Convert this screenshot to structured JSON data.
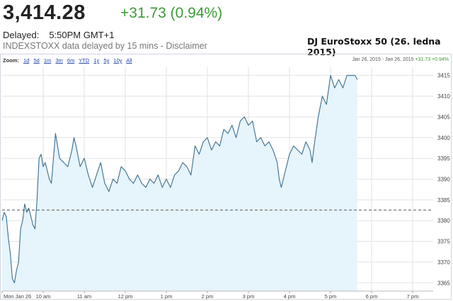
{
  "quote": {
    "price": "3,414.28",
    "change": "+31.73 (0.94%)",
    "delayed_label": "Delayed:",
    "delayed_time": "5:50PM GMT+1",
    "source_note": "INDEXSTOXX data delayed by 15 mins - Disclaimer"
  },
  "chart_title": "DJ EuroStoxx 50 (26. ledna 2015)",
  "zoom": {
    "label": "Zoom:",
    "options": [
      "1d",
      "5d",
      "1m",
      "3m",
      "6m",
      "YTD",
      "1y",
      "5y",
      "10y",
      "All"
    ]
  },
  "range_info": {
    "dates": "Jan 26, 2015 - Jan 26, 2015",
    "change": "+31.73 +0.94%"
  },
  "colors": {
    "line": "#3a6e8f",
    "fill": "#e6f4fb",
    "grid": "#e2e2e2",
    "reference": "#555555",
    "positive": "#3a9a35"
  },
  "chart_data": {
    "type": "area",
    "x_tick_labels": [
      "Mon Jan 26",
      "10 am",
      "11 am",
      "12 pm",
      "1 pm",
      "2 pm",
      "3 pm",
      "4 pm",
      "5 pm",
      "6 pm",
      "7 pm"
    ],
    "y_ticks": [
      3365,
      3370,
      3375,
      3380,
      3385,
      3390,
      3395,
      3400,
      3405,
      3410,
      3415
    ],
    "ylim": [
      3363,
      3417
    ],
    "xlim_hours": [
      9,
      19.5
    ],
    "reference_line": 3382.55,
    "grid": true,
    "series": [
      {
        "x": [
          9.0,
          9.05,
          9.1,
          9.15,
          9.2,
          9.25,
          9.3,
          9.35,
          9.4,
          9.45,
          9.5,
          9.55,
          9.6,
          9.65,
          9.7,
          9.75,
          9.8,
          9.85,
          9.9,
          9.95,
          10.0,
          10.05,
          10.1,
          10.15,
          10.2,
          10.25,
          10.3,
          10.4,
          10.5,
          10.6,
          10.7,
          10.75,
          10.8,
          10.9,
          11.0,
          11.1,
          11.2,
          11.3,
          11.4,
          11.5,
          11.6,
          11.7,
          11.8,
          11.9,
          12.0,
          12.1,
          12.2,
          12.3,
          12.4,
          12.5,
          12.6,
          12.7,
          12.8,
          12.9,
          13.0,
          13.1,
          13.2,
          13.3,
          13.4,
          13.5,
          13.6,
          13.7,
          13.8,
          13.9,
          14.0,
          14.1,
          14.2,
          14.3,
          14.4,
          14.5,
          14.6,
          14.7,
          14.8,
          14.9,
          15.0,
          15.1,
          15.2,
          15.3,
          15.4,
          15.5,
          15.6,
          15.7,
          15.75,
          15.8,
          15.9,
          16.0,
          16.1,
          16.2,
          16.3,
          16.4,
          16.5,
          16.55,
          16.6,
          16.7,
          16.8,
          16.9,
          17.0,
          17.1,
          17.2,
          17.3,
          17.4,
          17.5,
          17.6,
          17.65
        ],
        "y": [
          3380,
          3382,
          3381,
          3376,
          3372,
          3366,
          3365,
          3368,
          3370,
          3378,
          3380,
          3384,
          3382,
          3383,
          3381,
          3379,
          3378,
          3385,
          3395,
          3396,
          3393,
          3394,
          3392,
          3390,
          3389,
          3395,
          3401,
          3395,
          3394,
          3393,
          3397,
          3400,
          3398,
          3393,
          3395,
          3391,
          3388,
          3391,
          3394,
          3389,
          3387,
          3390,
          3389,
          3393,
          3392,
          3390,
          3389,
          3391,
          3389,
          3388,
          3390,
          3389,
          3391,
          3388,
          3390,
          3388,
          3391,
          3392,
          3394,
          3393,
          3391,
          3398,
          3396,
          3399,
          3400,
          3397,
          3399,
          3398,
          3402,
          3401,
          3403,
          3400,
          3404,
          3405,
          3403,
          3404,
          3399,
          3400,
          3398,
          3399,
          3397,
          3394,
          3390,
          3388,
          3392,
          3396,
          3398,
          3397,
          3396,
          3399,
          3397,
          3394,
          3398,
          3405,
          3410,
          3408,
          3415,
          3412,
          3414,
          3412,
          3415,
          3415,
          3415,
          3414
        ]
      }
    ]
  }
}
